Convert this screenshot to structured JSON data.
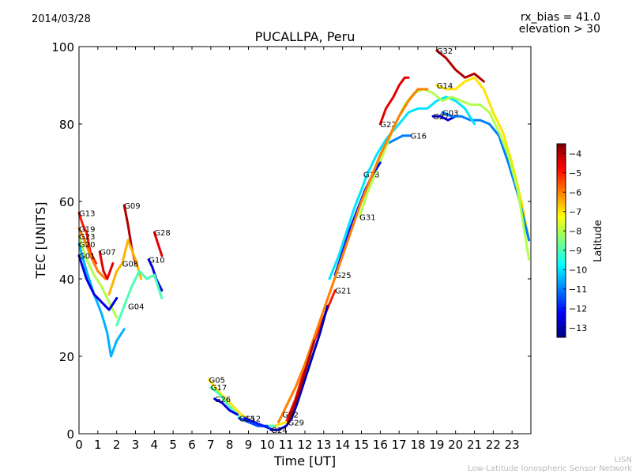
{
  "header": {
    "date": "2014/03/28",
    "rx_bias": "rx_bias = 41.0",
    "elevation": "elevation > 30"
  },
  "footer": {
    "line1": "LISN",
    "line2": "Low-Latitude Ionospheric Sensor Network"
  },
  "colorbar": {
    "label": "Latitude",
    "min": -13.5,
    "max": -3.5,
    "ticks": [
      -4,
      -5,
      -6,
      -7,
      -8,
      -9,
      -10,
      -11,
      -12,
      -13
    ],
    "tick_labels": [
      "−4",
      "−5",
      "−6",
      "−7",
      "−8",
      "−9",
      "−10",
      "−11",
      "−12",
      "−13"
    ],
    "colors": [
      "#00007f",
      "#0000ff",
      "#007fff",
      "#00ffff",
      "#7fff7f",
      "#ffff00",
      "#ff7f00",
      "#ff0000",
      "#7f0000"
    ]
  },
  "chart_data": {
    "type": "line",
    "title": "PUCALLPA, Peru",
    "xlabel": "Time [UT]",
    "ylabel": "TEC [UNITS]",
    "xlim": [
      0,
      24
    ],
    "ylim": [
      0,
      100
    ],
    "xticks": [
      0,
      1,
      2,
      3,
      4,
      5,
      6,
      7,
      8,
      9,
      10,
      11,
      12,
      13,
      14,
      15,
      16,
      17,
      18,
      19,
      20,
      21,
      22,
      23
    ],
    "yticks": [
      0,
      20,
      40,
      60,
      80,
      100
    ],
    "grid": false,
    "series": [
      {
        "name": "G32",
        "lat": -4,
        "label_at": [
          19.0,
          99
        ],
        "x": [
          19.0,
          19.5,
          20.0,
          20.5,
          21.0,
          21.5
        ],
        "y": [
          99,
          97,
          94,
          92,
          93,
          91
        ]
      },
      {
        "name": "G14",
        "lat": -7,
        "label_at": [
          19.0,
          90
        ],
        "x": [
          19.0,
          19.5,
          20.0,
          20.5,
          21.0,
          21.5,
          22.0,
          22.5,
          23.0,
          23.5,
          23.9
        ],
        "y": [
          90,
          89,
          89,
          91,
          92,
          89,
          83,
          78,
          70,
          60,
          50
        ]
      },
      {
        "name": "G22",
        "lat": -4.5,
        "label_at": [
          16.0,
          80
        ],
        "x": [
          16.0,
          16.3,
          16.7,
          17.0,
          17.3,
          17.5
        ],
        "y": [
          80,
          84,
          87,
          90,
          92,
          92
        ]
      },
      {
        "name": "G16",
        "lat": -11,
        "label_at": [
          17.6,
          77
        ],
        "x": [
          16.4,
          16.8,
          17.2,
          17.6
        ],
        "y": [
          75,
          76,
          77,
          77
        ]
      },
      {
        "name": "G27",
        "lat": -12.5,
        "label_at": [
          18.8,
          82
        ],
        "x": [
          18.8,
          19.2,
          19.6,
          20.0
        ],
        "y": [
          82,
          82,
          81,
          82
        ]
      },
      {
        "name": "G03",
        "lat": -11,
        "label_at": [
          19.3,
          83
        ],
        "x": [
          19.3,
          19.8,
          20.3,
          20.8,
          21.3,
          21.8,
          22.3,
          22.8,
          23.3,
          23.9
        ],
        "y": [
          83,
          82,
          82,
          81,
          81,
          80,
          77,
          70,
          62,
          50
        ]
      },
      {
        "name": "G18",
        "lat": -10,
        "label_at": [
          15.1,
          67
        ],
        "x": [
          13.3,
          13.8,
          14.2,
          14.6,
          15.0,
          15.3,
          15.8,
          16.3,
          17.0,
          17.5,
          18.0,
          18.5,
          19.0,
          19.5,
          20.0,
          20.5,
          21.0
        ],
        "y": [
          40,
          46,
          52,
          58,
          63,
          67,
          72,
          76,
          80,
          83,
          84,
          84,
          86,
          87,
          86,
          84,
          80
        ]
      },
      {
        "name": "G31",
        "lat": -8,
        "label_at": [
          14.9,
          56
        ],
        "x": [
          14.9,
          15.3,
          15.8,
          16.3,
          16.8,
          17.3,
          17.8,
          18.3,
          18.8,
          19.3,
          19.8,
          20.3,
          20.8,
          21.3,
          21.8,
          22.3,
          22.8,
          23.3,
          23.9
        ],
        "y": [
          56,
          62,
          68,
          74,
          80,
          85,
          88,
          89,
          88,
          86,
          87,
          86,
          85,
          85,
          83,
          78,
          72,
          63,
          45
        ]
      },
      {
        "name": "G25",
        "lat": -12,
        "label_at": [
          13.6,
          41
        ],
        "x": [
          13.6,
          14.0,
          14.4,
          14.8,
          15.2,
          15.6,
          16.0
        ],
        "y": [
          41,
          47,
          53,
          58,
          63,
          67,
          70
        ]
      },
      {
        "name": "G21",
        "lat": -5,
        "label_at": [
          13.6,
          37
        ],
        "x": [
          11.0,
          11.5,
          12.0,
          12.5,
          13.0,
          13.6
        ],
        "y": [
          3,
          9,
          17,
          24,
          30,
          37
        ]
      },
      {
        "name": "G13",
        "lat": -5,
        "label_at": [
          0.0,
          57
        ],
        "x": [
          0.0,
          0.2,
          0.4,
          0.6,
          0.9
        ],
        "y": [
          57,
          54,
          52,
          47,
          44
        ]
      },
      {
        "name": "G19",
        "lat": -6,
        "label_at": [
          0.0,
          53
        ],
        "x": [
          0.0,
          0.3,
          0.6,
          1.0,
          1.4
        ],
        "y": [
          53,
          50,
          46,
          42,
          40
        ]
      },
      {
        "name": "G23",
        "lat": -8,
        "label_at": [
          0.0,
          51
        ],
        "x": [
          0.0,
          0.4,
          0.8,
          1.2,
          1.6,
          2.0
        ],
        "y": [
          51,
          45,
          41,
          38,
          34,
          30
        ]
      },
      {
        "name": "G20",
        "lat": -10.5,
        "label_at": [
          0.0,
          49
        ],
        "x": [
          0.0,
          0.4,
          0.8,
          1.2,
          1.5,
          1.7,
          2.0,
          2.4
        ],
        "y": [
          49,
          42,
          36,
          31,
          26,
          20,
          24,
          27
        ]
      },
      {
        "name": "G01",
        "lat": -12.5,
        "label_at": [
          0.0,
          46
        ],
        "x": [
          0.0,
          0.4,
          0.8,
          1.2,
          1.6,
          2.0
        ],
        "y": [
          46,
          40,
          36,
          34,
          32,
          35
        ]
      },
      {
        "name": "G07",
        "lat": -4.5,
        "label_at": [
          1.1,
          47
        ],
        "x": [
          1.1,
          1.3,
          1.5,
          1.8
        ],
        "y": [
          47,
          42,
          40,
          44
        ]
      },
      {
        "name": "G09",
        "lat": -4,
        "label_at": [
          2.4,
          59
        ],
        "x": [
          2.4,
          2.6,
          2.8,
          3.0
        ],
        "y": [
          59,
          54,
          48,
          44
        ]
      },
      {
        "name": "G08",
        "lat": -6.5,
        "label_at": [
          2.3,
          44
        ],
        "x": [
          1.6,
          2.0,
          2.3,
          2.6,
          3.0,
          3.3
        ],
        "y": [
          36,
          42,
          44,
          50,
          45,
          40
        ]
      },
      {
        "name": "G28",
        "lat": -4.5,
        "label_at": [
          4.0,
          52
        ],
        "x": [
          4.0,
          4.2,
          4.4
        ],
        "y": [
          52,
          49,
          46
        ]
      },
      {
        "name": "G10",
        "lat": -12.5,
        "label_at": [
          3.7,
          45
        ],
        "x": [
          3.7,
          3.9,
          4.1,
          4.4
        ],
        "y": [
          45,
          43,
          40,
          37
        ]
      },
      {
        "name": "G04",
        "lat": -9,
        "label_at": [
          2.6,
          33
        ],
        "x": [
          2.0,
          2.4,
          2.8,
          3.2,
          3.6,
          4.0,
          4.4
        ],
        "y": [
          28,
          33,
          38,
          42,
          40,
          41,
          35
        ]
      },
      {
        "name": "G05",
        "lat": -7,
        "label_at": [
          6.9,
          14
        ],
        "x": [
          6.9,
          7.4,
          8.0,
          8.6,
          9.2,
          9.8,
          10.4,
          11.0
        ],
        "y": [
          14,
          11,
          8,
          5,
          3,
          2,
          2,
          3
        ]
      },
      {
        "name": "G17",
        "lat": -9,
        "label_at": [
          7.0,
          12
        ],
        "x": [
          7.0,
          7.5,
          8.0,
          8.6,
          9.2,
          9.8,
          10.4
        ],
        "y": [
          12,
          10,
          7,
          4,
          3,
          2,
          2
        ]
      },
      {
        "name": "G26",
        "lat": -12.5,
        "label_at": [
          7.2,
          9
        ],
        "x": [
          7.2,
          7.6,
          8.0,
          8.4
        ],
        "y": [
          9,
          8,
          6,
          5
        ]
      },
      {
        "name": "G15",
        "lat": -11.5,
        "label_at": [
          8.5,
          4
        ],
        "x": [
          8.5,
          9.0,
          9.5,
          10.0
        ],
        "y": [
          4,
          3,
          2,
          2
        ]
      },
      {
        "name": "G12",
        "lat": -12,
        "label_at": [
          8.8,
          4
        ],
        "x": [
          8.8,
          9.3,
          9.8,
          10.3
        ],
        "y": [
          4,
          3,
          2,
          1
        ]
      },
      {
        "name": "G24",
        "lat": -13,
        "label_at": [
          10.2,
          1
        ],
        "x": [
          10.2,
          10.6,
          11.0,
          11.3,
          11.6,
          12.0,
          12.4,
          12.8,
          13.2
        ],
        "y": [
          1,
          1,
          2,
          4,
          8,
          14,
          20,
          26,
          33
        ]
      },
      {
        "name": "G02",
        "lat": -6,
        "label_at": [
          10.8,
          5
        ],
        "x": [
          10.6,
          10.8,
          11.1,
          11.5,
          12.0,
          12.5,
          13.0,
          13.5,
          14.0,
          14.5,
          15.0,
          15.5,
          16.0,
          16.5,
          17.0,
          17.5,
          18.0,
          18.5
        ],
        "y": [
          3,
          5,
          8,
          12,
          18,
          25,
          32,
          39,
          46,
          53,
          60,
          66,
          72,
          77,
          82,
          86,
          89,
          89
        ]
      },
      {
        "name": "G29",
        "lat": -4,
        "label_at": [
          11.1,
          3
        ],
        "x": [
          11.1,
          11.4,
          11.7,
          12.0,
          12.5
        ],
        "y": [
          3,
          7,
          11,
          16,
          24
        ]
      }
    ]
  }
}
